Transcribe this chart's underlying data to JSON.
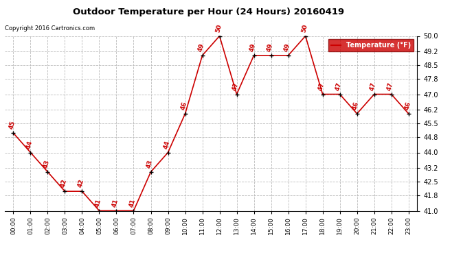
{
  "title": "Outdoor Temperature per Hour (24 Hours) 20160419",
  "copyright": "Copyright 2016 Cartronics.com",
  "legend_label": "Temperature (°F)",
  "hours": [
    "00:00",
    "01:00",
    "02:00",
    "03:00",
    "04:00",
    "05:00",
    "06:00",
    "07:00",
    "08:00",
    "09:00",
    "10:00",
    "11:00",
    "12:00",
    "13:00",
    "14:00",
    "15:00",
    "16:00",
    "17:00",
    "18:00",
    "19:00",
    "20:00",
    "21:00",
    "22:00",
    "23:00"
  ],
  "temps": [
    45,
    44,
    43,
    42,
    42,
    41,
    41,
    41,
    43,
    44,
    46,
    49,
    50,
    47,
    49,
    49,
    49,
    50,
    47,
    47,
    46,
    47,
    47,
    46
  ],
  "ylim_min": 41.0,
  "ylim_max": 50.0,
  "yticks": [
    41.0,
    41.8,
    42.5,
    43.2,
    44.0,
    44.8,
    45.5,
    46.2,
    47.0,
    47.8,
    48.5,
    49.2,
    50.0
  ],
  "line_color": "#cc0000",
  "marker_color": "#000000",
  "label_color": "#cc0000",
  "bg_color": "#ffffff",
  "grid_color": "#bbbbbb",
  "title_color": "#000000",
  "copyright_color": "#000000",
  "legend_bg": "#cc0000",
  "legend_text_color": "#ffffff"
}
